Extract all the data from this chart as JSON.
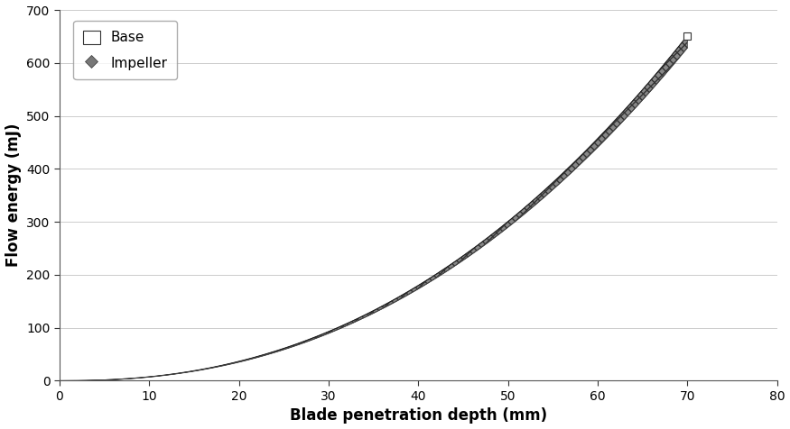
{
  "title": "",
  "xlabel": "Blade penetration depth (mm)",
  "ylabel": "Flow energy (mJ)",
  "xlim": [
    0,
    80
  ],
  "ylim": [
    0,
    700
  ],
  "xticks": [
    0,
    10,
    20,
    30,
    40,
    50,
    60,
    70,
    80
  ],
  "yticks": [
    0,
    100,
    200,
    300,
    400,
    500,
    600,
    700
  ],
  "x_max": 70,
  "base_color": "#333333",
  "impeller_color": "#555555",
  "background_color": "#ffffff",
  "legend_labels": [
    "Base",
    "Impeller"
  ],
  "xlabel_fontsize": 12,
  "ylabel_fontsize": 12,
  "tick_fontsize": 10,
  "legend_fontsize": 11,
  "power_n": 2.3,
  "y_at_70": 640
}
